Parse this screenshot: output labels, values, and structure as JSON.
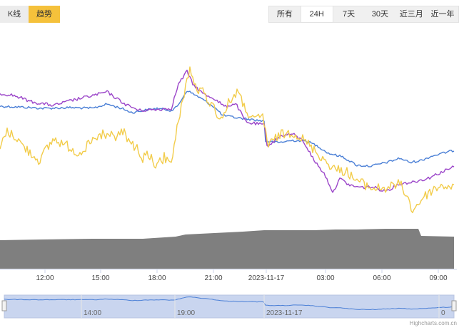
{
  "tabs": [
    {
      "label": "K线",
      "active": false
    },
    {
      "label": "趋势",
      "active": true
    }
  ],
  "ranges": [
    {
      "label": "所有",
      "active": false
    },
    {
      "label": "24H",
      "active": true
    },
    {
      "label": "7天",
      "active": false
    },
    {
      "label": "30天",
      "active": false
    },
    {
      "label": "近三月",
      "active": false
    },
    {
      "label": "近一年",
      "active": false
    }
  ],
  "credit": "Highcharts.com.cn",
  "colors": {
    "blue": "#4a7fd6",
    "purple": "#9b45c9",
    "yellow": "#f2cc4a",
    "volume": "#7f7f7f",
    "navigator": "#c9d5ef"
  },
  "chart_data": {
    "type": "line",
    "x_ticks": [
      "12:00",
      "15:00",
      "18:00",
      "21:00",
      "2023-11-17",
      "03:00",
      "06:00",
      "09:00"
    ],
    "navigator_ticks": [
      "14:00",
      "19:00",
      "2023-11-17",
      "0"
    ],
    "series": [
      {
        "color": "blue",
        "anchors": [
          [
            0,
            149
          ],
          [
            25,
            150
          ],
          [
            60,
            152
          ],
          [
            100,
            151
          ],
          [
            130,
            152
          ],
          [
            150,
            146
          ],
          [
            170,
            152
          ],
          [
            185,
            158
          ],
          [
            200,
            155
          ],
          [
            220,
            152
          ],
          [
            240,
            155
          ],
          [
            248,
            150
          ],
          [
            262,
            127
          ],
          [
            280,
            137
          ],
          [
            300,
            150
          ],
          [
            312,
            162
          ],
          [
            330,
            165
          ],
          [
            355,
            168
          ],
          [
            370,
            170
          ],
          [
            372,
            198
          ],
          [
            390,
            200
          ],
          [
            410,
            197
          ],
          [
            430,
            198
          ],
          [
            445,
            205
          ],
          [
            460,
            215
          ],
          [
            480,
            220
          ],
          [
            500,
            232
          ],
          [
            520,
            233
          ],
          [
            545,
            227
          ],
          [
            560,
            222
          ],
          [
            575,
            228
          ],
          [
            590,
            225
          ],
          [
            605,
            219
          ],
          [
            620,
            215
          ],
          [
            636,
            211
          ]
        ]
      },
      {
        "color": "purple",
        "anchors": [
          [
            0,
            131
          ],
          [
            20,
            134
          ],
          [
            45,
            143
          ],
          [
            75,
            148
          ],
          [
            100,
            141
          ],
          [
            130,
            134
          ],
          [
            150,
            129
          ],
          [
            175,
            146
          ],
          [
            195,
            155
          ],
          [
            215,
            154
          ],
          [
            240,
            152
          ],
          [
            250,
            118
          ],
          [
            262,
            100
          ],
          [
            270,
            118
          ],
          [
            285,
            132
          ],
          [
            300,
            138
          ],
          [
            315,
            150
          ],
          [
            330,
            145
          ],
          [
            345,
            172
          ],
          [
            370,
            175
          ],
          [
            374,
            205
          ],
          [
            395,
            190
          ],
          [
            410,
            188
          ],
          [
            425,
            198
          ],
          [
            440,
            225
          ],
          [
            455,
            245
          ],
          [
            467,
            271
          ],
          [
            475,
            250
          ],
          [
            490,
            260
          ],
          [
            505,
            263
          ],
          [
            520,
            262
          ],
          [
            540,
            268
          ],
          [
            560,
            258
          ],
          [
            580,
            255
          ],
          [
            600,
            250
          ],
          [
            615,
            243
          ],
          [
            636,
            234
          ]
        ]
      },
      {
        "color": "yellow",
        "anchors": [
          [
            0,
            210
          ],
          [
            8,
            185
          ],
          [
            20,
            190
          ],
          [
            35,
            208
          ],
          [
            55,
            225
          ],
          [
            75,
            195
          ],
          [
            95,
            205
          ],
          [
            110,
            215
          ],
          [
            135,
            195
          ],
          [
            155,
            190
          ],
          [
            175,
            190
          ],
          [
            195,
            215
          ],
          [
            215,
            232
          ],
          [
            242,
            222
          ],
          [
            250,
            168
          ],
          [
            260,
            120
          ],
          [
            266,
            98
          ],
          [
            275,
            125
          ],
          [
            285,
            130
          ],
          [
            300,
            152
          ],
          [
            310,
            168
          ],
          [
            320,
            145
          ],
          [
            332,
            128
          ],
          [
            342,
            150
          ],
          [
            355,
            170
          ],
          [
            368,
            162
          ],
          [
            376,
            205
          ],
          [
            390,
            190
          ],
          [
            410,
            185
          ],
          [
            425,
            196
          ],
          [
            440,
            210
          ],
          [
            455,
            225
          ],
          [
            470,
            238
          ],
          [
            485,
            240
          ],
          [
            495,
            250
          ],
          [
            505,
            256
          ],
          [
            520,
            264
          ],
          [
            540,
            264
          ],
          [
            560,
            258
          ],
          [
            568,
            270
          ],
          [
            578,
            296
          ],
          [
            590,
            280
          ],
          [
            605,
            267
          ],
          [
            620,
            260
          ],
          [
            636,
            262
          ]
        ]
      }
    ],
    "volume": {
      "color": "volume",
      "anchors": [
        [
          0,
          337
        ],
        [
          60,
          336
        ],
        [
          130,
          335
        ],
        [
          200,
          335
        ],
        [
          246,
          332
        ],
        [
          260,
          329
        ],
        [
          300,
          327
        ],
        [
          340,
          325
        ],
        [
          370,
          323
        ],
        [
          400,
          323
        ],
        [
          440,
          323
        ],
        [
          470,
          322
        ],
        [
          500,
          322
        ],
        [
          540,
          321
        ],
        [
          586,
          321
        ],
        [
          590,
          331
        ],
        [
          636,
          332
        ]
      ]
    }
  }
}
